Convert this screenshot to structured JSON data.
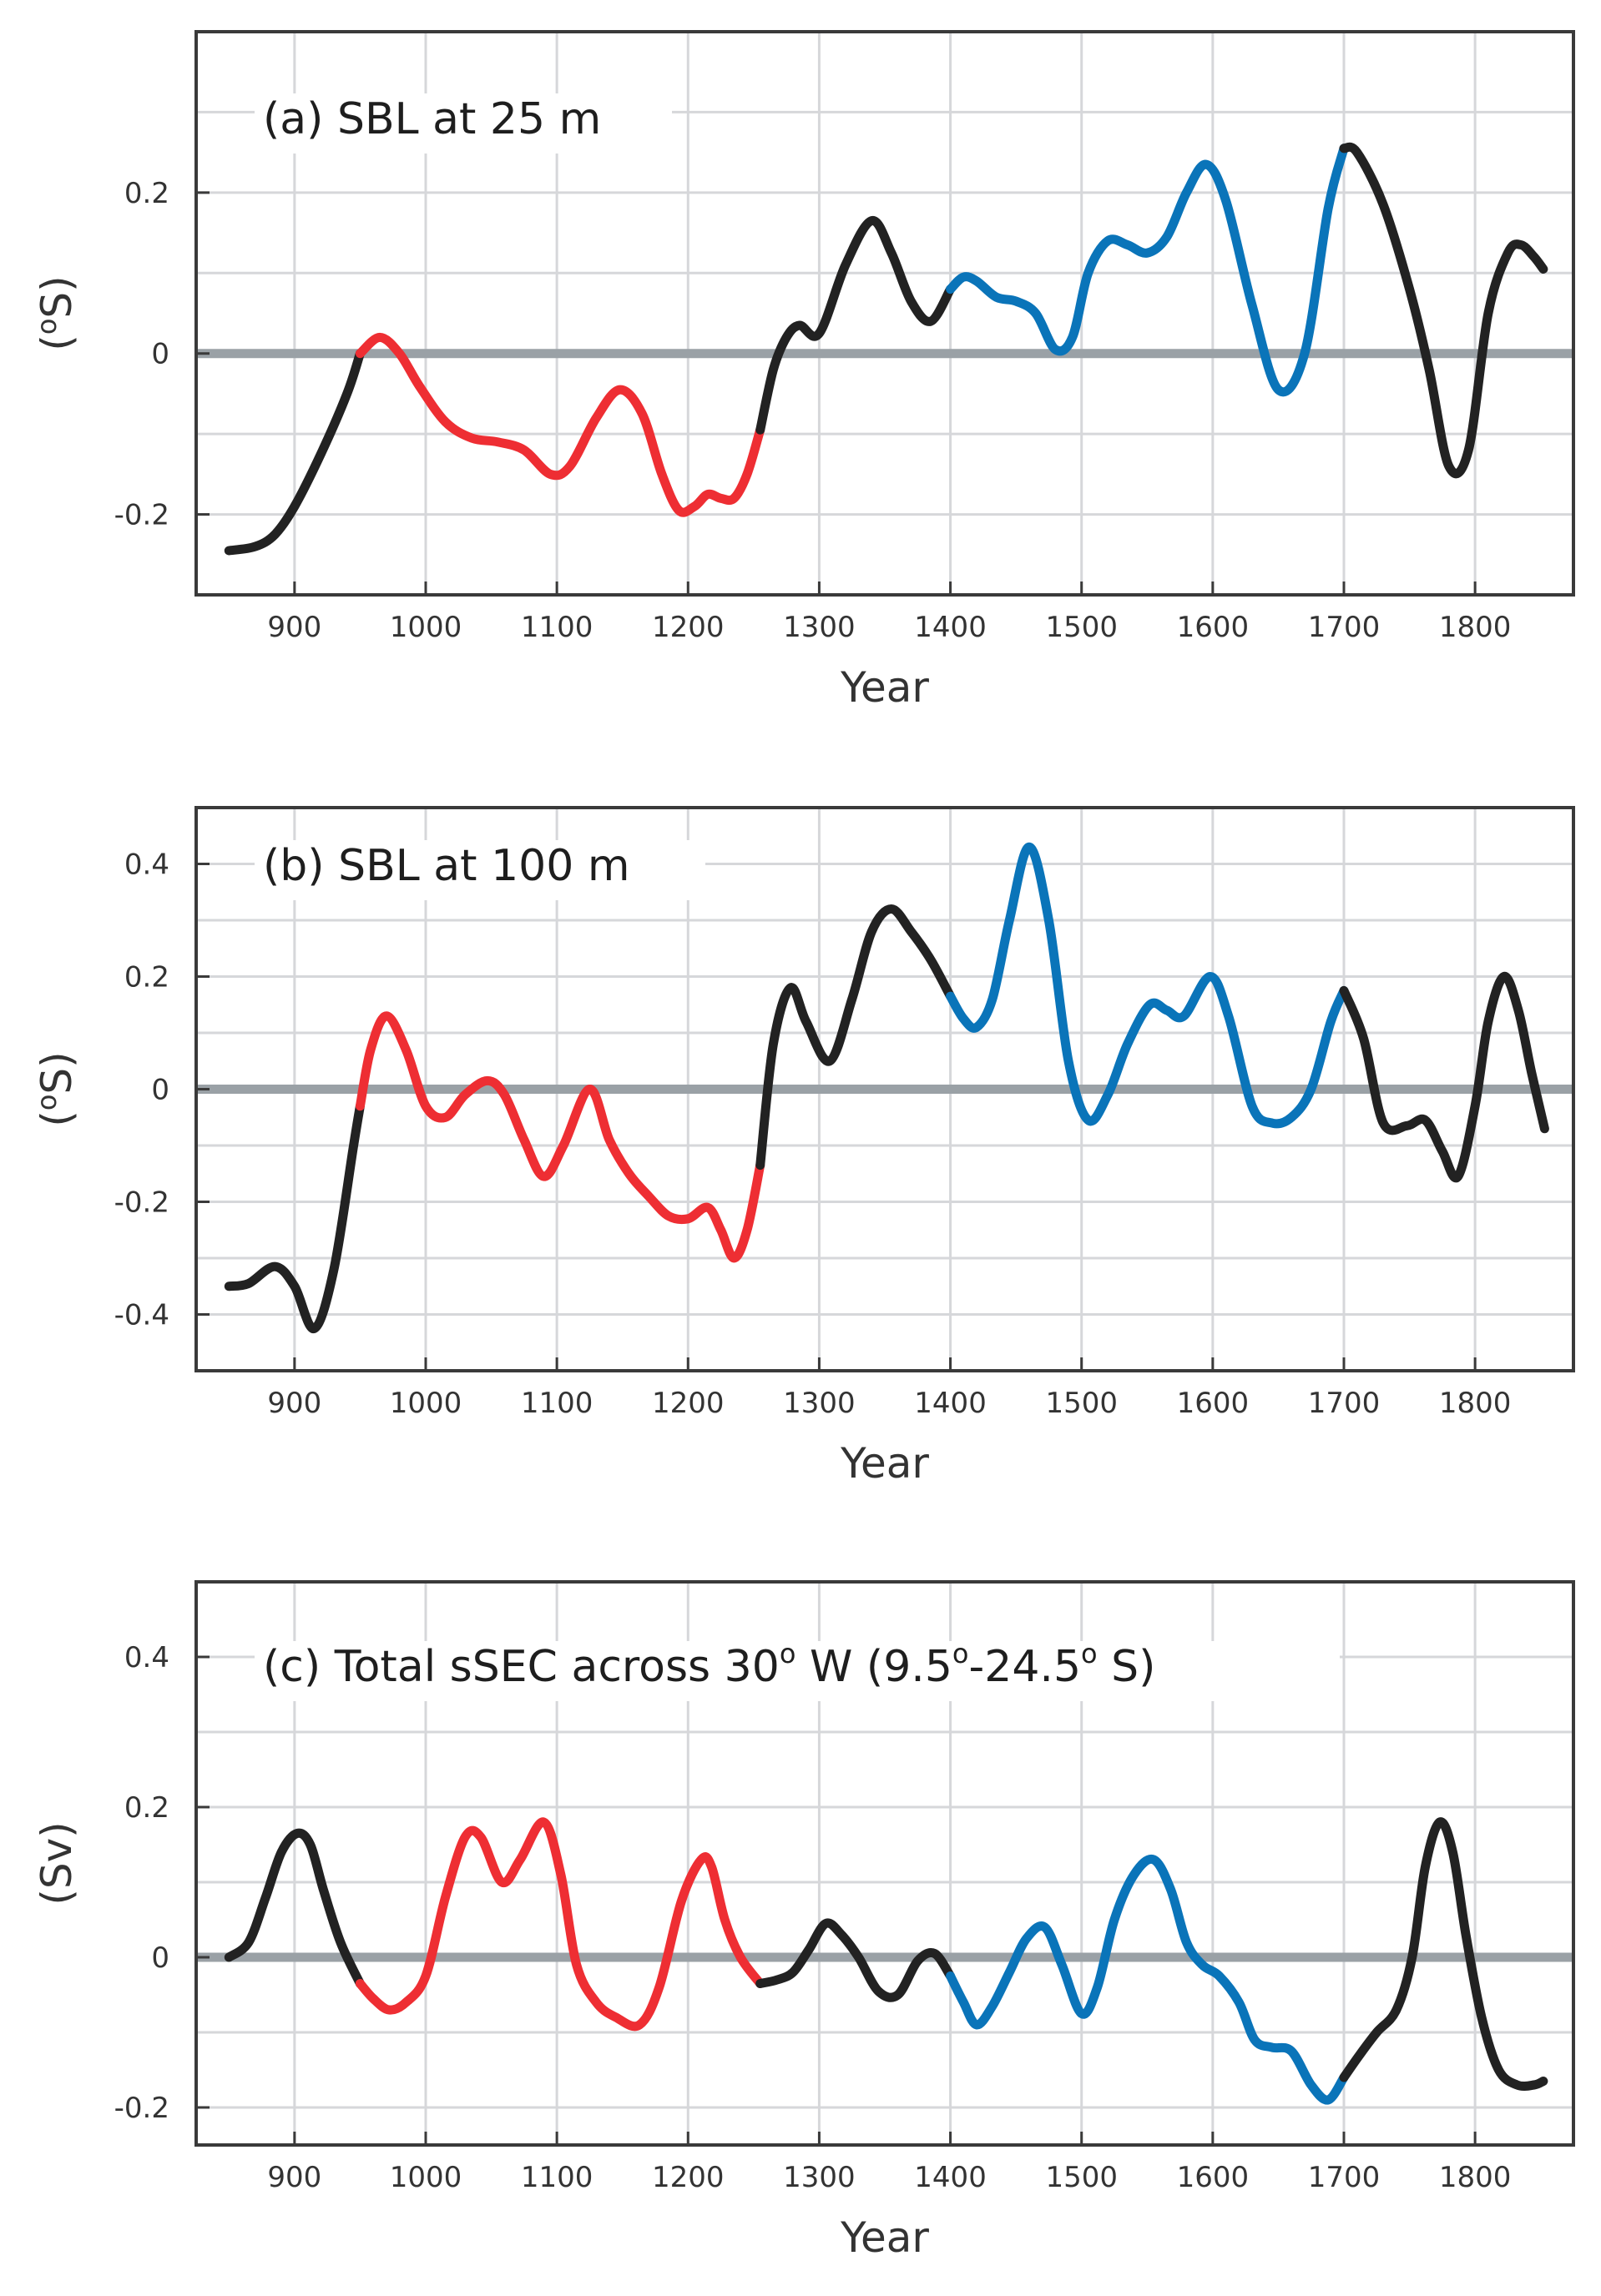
{
  "colors": {
    "warm": "#ee2e33",
    "cold": "#0a74b9",
    "neutral": "#222222",
    "zero_line": "#9aa1a6",
    "grid": "#d6d7da",
    "frame": "#3a3a3a"
  },
  "chart_data": [
    {
      "type": "line",
      "title": "(a) SBL at 25 m",
      "xlabel": "Year",
      "ylabel": "(°S)",
      "ylabel_parts": [
        "(",
        "o",
        "S)"
      ],
      "xlim": [
        825,
        1875
      ],
      "ylim": [
        -0.3,
        0.4
      ],
      "xticks": [
        900,
        1000,
        1100,
        1200,
        1300,
        1400,
        1500,
        1600,
        1700,
        1800
      ],
      "xtick_labels": [
        "900",
        "1000",
        "1100",
        "1200",
        "1300",
        "1400",
        "1500",
        "1600",
        "1700",
        "1800"
      ],
      "yticks": [
        -0.2,
        0,
        0.2
      ],
      "ytick_labels": [
        "-0.2",
        "0",
        "0.2"
      ],
      "grid": true,
      "zero_line": true,
      "series": [
        {
          "name": "neutral",
          "color_key": "neutral",
          "x": [
            850,
            870,
            885,
            900,
            920,
            940,
            950
          ],
          "y": [
            -0.245,
            -0.24,
            -0.225,
            -0.19,
            -0.125,
            -0.05,
            0.0
          ]
        },
        {
          "name": "warm",
          "color_key": "warm",
          "x": [
            950,
            965,
            980,
            995,
            1015,
            1035,
            1055,
            1075,
            1095,
            1110,
            1130,
            1148,
            1165,
            1180,
            1193,
            1205,
            1215,
            1225,
            1235,
            1245,
            1255
          ],
          "y": [
            0.0,
            0.02,
            0.0,
            -0.04,
            -0.085,
            -0.105,
            -0.11,
            -0.12,
            -0.15,
            -0.14,
            -0.08,
            -0.045,
            -0.075,
            -0.15,
            -0.195,
            -0.19,
            -0.175,
            -0.18,
            -0.18,
            -0.15,
            -0.095
          ]
        },
        {
          "name": "neutral",
          "color_key": "neutral",
          "x": [
            1255,
            1265,
            1275,
            1285,
            1300,
            1320,
            1340,
            1355,
            1370,
            1385,
            1400
          ],
          "y": [
            -0.095,
            -0.02,
            0.02,
            0.035,
            0.025,
            0.11,
            0.165,
            0.125,
            0.065,
            0.04,
            0.08
          ]
        },
        {
          "name": "cold",
          "color_key": "cold",
          "x": [
            1400,
            1410,
            1420,
            1435,
            1450,
            1465,
            1480,
            1493,
            1505,
            1520,
            1535,
            1550,
            1565,
            1580,
            1595,
            1610,
            1630,
            1650,
            1670,
            1688,
            1700
          ],
          "y": [
            0.08,
            0.095,
            0.09,
            0.07,
            0.065,
            0.05,
            0.005,
            0.02,
            0.1,
            0.14,
            0.135,
            0.125,
            0.145,
            0.2,
            0.235,
            0.19,
            0.06,
            -0.045,
            0.0,
            0.18,
            0.255
          ]
        },
        {
          "name": "neutral",
          "color_key": "neutral",
          "x": [
            1700,
            1710,
            1730,
            1750,
            1765,
            1780,
            1795,
            1810,
            1825,
            1835,
            1845,
            1852
          ],
          "y": [
            0.255,
            0.25,
            0.185,
            0.08,
            -0.02,
            -0.14,
            -0.12,
            0.05,
            0.125,
            0.135,
            0.12,
            0.105
          ]
        }
      ]
    },
    {
      "type": "line",
      "title": "(b) SBL at 100 m",
      "xlabel": "Year",
      "ylabel": "(°S)",
      "ylabel_parts": [
        "(",
        "o",
        "S)"
      ],
      "xlim": [
        825,
        1875
      ],
      "ylim": [
        -0.5,
        0.5
      ],
      "xticks": [
        900,
        1000,
        1100,
        1200,
        1300,
        1400,
        1500,
        1600,
        1700,
        1800
      ],
      "xtick_labels": [
        "900",
        "1000",
        "1100",
        "1200",
        "1300",
        "1400",
        "1500",
        "1600",
        "1700",
        "1800"
      ],
      "yticks": [
        -0.4,
        -0.2,
        0,
        0.2,
        0.4
      ],
      "ytick_labels": [
        "-0.4",
        "-0.2",
        "0",
        "0.2",
        "0.4"
      ],
      "grid": true,
      "zero_line": true,
      "series": [
        {
          "name": "neutral",
          "color_key": "neutral",
          "x": [
            850,
            865,
            885,
            900,
            915,
            930,
            945,
            950
          ],
          "y": [
            -0.35,
            -0.345,
            -0.315,
            -0.35,
            -0.425,
            -0.32,
            -0.1,
            -0.03
          ]
        },
        {
          "name": "warm",
          "color_key": "warm",
          "x": [
            950,
            958,
            970,
            985,
            1000,
            1015,
            1030,
            1047,
            1060,
            1075,
            1090,
            1105,
            1125,
            1140,
            1155,
            1170,
            1185,
            1200,
            1215,
            1225,
            1235,
            1245,
            1255
          ],
          "y": [
            -0.03,
            0.07,
            0.13,
            0.07,
            -0.03,
            -0.05,
            -0.01,
            0.015,
            -0.01,
            -0.09,
            -0.155,
            -0.1,
            0.0,
            -0.09,
            -0.15,
            -0.19,
            -0.225,
            -0.23,
            -0.21,
            -0.25,
            -0.3,
            -0.25,
            -0.135
          ]
        },
        {
          "name": "neutral",
          "color_key": "neutral",
          "x": [
            1255,
            1265,
            1278,
            1290,
            1308,
            1325,
            1340,
            1355,
            1370,
            1385,
            1400
          ],
          "y": [
            -0.135,
            0.08,
            0.18,
            0.12,
            0.05,
            0.16,
            0.28,
            0.32,
            0.28,
            0.23,
            0.165
          ]
        },
        {
          "name": "cold",
          "color_key": "cold",
          "x": [
            1400,
            1410,
            1420,
            1432,
            1445,
            1460,
            1475,
            1490,
            1505,
            1520,
            1535,
            1552,
            1565,
            1578,
            1598,
            1612,
            1630,
            1645,
            1660,
            1675,
            1690,
            1700
          ],
          "y": [
            0.165,
            0.125,
            0.11,
            0.16,
            0.3,
            0.43,
            0.3,
            0.05,
            -0.055,
            -0.01,
            0.08,
            0.15,
            0.14,
            0.13,
            0.2,
            0.13,
            -0.03,
            -0.06,
            -0.05,
            0.0,
            0.12,
            0.175
          ]
        },
        {
          "name": "neutral",
          "color_key": "neutral",
          "x": [
            1700,
            1715,
            1730,
            1748,
            1762,
            1775,
            1787,
            1800,
            1810,
            1822,
            1833,
            1843,
            1853
          ],
          "y": [
            0.175,
            0.09,
            -0.06,
            -0.065,
            -0.055,
            -0.11,
            -0.155,
            -0.03,
            0.12,
            0.2,
            0.14,
            0.03,
            -0.07
          ]
        }
      ]
    },
    {
      "type": "line",
      "title": "(c) Total sSEC across 30° W (9.5°-24.5° S)",
      "title_parts": [
        "(c) Total sSEC across 30",
        "o",
        " W (9.5",
        "o",
        "-24.5",
        "o",
        " S)"
      ],
      "xlabel": "Year",
      "ylabel": "(Sv)",
      "xlim": [
        825,
        1875
      ],
      "ylim": [
        -0.25,
        0.5
      ],
      "xticks": [
        900,
        1000,
        1100,
        1200,
        1300,
        1400,
        1500,
        1600,
        1700,
        1800
      ],
      "xtick_labels": [
        "900",
        "1000",
        "1100",
        "1200",
        "1300",
        "1400",
        "1500",
        "1600",
        "1700",
        "1800"
      ],
      "yticks": [
        -0.2,
        0,
        0.2,
        0.4
      ],
      "ytick_labels": [
        "-0.2",
        "0",
        "0.2",
        "0.4"
      ],
      "grid": true,
      "zero_line": true,
      "series": [
        {
          "name": "neutral",
          "color_key": "neutral",
          "x": [
            850,
            865,
            878,
            890,
            902,
            912,
            922,
            935,
            950
          ],
          "y": [
            0.0,
            0.02,
            0.08,
            0.14,
            0.165,
            0.15,
            0.09,
            0.02,
            -0.035
          ]
        },
        {
          "name": "warm",
          "color_key": "warm",
          "x": [
            950,
            960,
            972,
            985,
            1000,
            1015,
            1030,
            1042,
            1058,
            1072,
            1090,
            1103,
            1115,
            1130,
            1145,
            1163,
            1178,
            1195,
            1210,
            1218,
            1228,
            1240,
            1255
          ],
          "y": [
            -0.035,
            -0.055,
            -0.07,
            -0.06,
            -0.025,
            0.08,
            0.16,
            0.16,
            0.1,
            0.13,
            0.18,
            0.11,
            -0.01,
            -0.06,
            -0.08,
            -0.09,
            -0.04,
            0.075,
            0.13,
            0.12,
            0.05,
            0.0,
            -0.035
          ]
        },
        {
          "name": "neutral",
          "color_key": "neutral",
          "x": [
            1255,
            1268,
            1280,
            1292,
            1305,
            1317,
            1330,
            1345,
            1360,
            1375,
            1388,
            1400
          ],
          "y": [
            -0.035,
            -0.03,
            -0.02,
            0.01,
            0.045,
            0.03,
            0.0,
            -0.045,
            -0.05,
            -0.005,
            0.005,
            -0.025
          ]
        },
        {
          "name": "cold",
          "color_key": "cold",
          "x": [
            1400,
            1410,
            1420,
            1432,
            1445,
            1458,
            1472,
            1485,
            1500,
            1512,
            1525,
            1540,
            1555,
            1568,
            1580,
            1592,
            1605,
            1620,
            1632,
            1645,
            1660,
            1675,
            1688,
            1700
          ],
          "y": [
            -0.025,
            -0.06,
            -0.09,
            -0.065,
            -0.02,
            0.025,
            0.04,
            -0.01,
            -0.075,
            -0.04,
            0.05,
            0.11,
            0.13,
            0.09,
            0.02,
            -0.01,
            -0.025,
            -0.06,
            -0.11,
            -0.12,
            -0.125,
            -0.17,
            -0.19,
            -0.16
          ]
        },
        {
          "name": "neutral",
          "color_key": "neutral",
          "x": [
            1700,
            1712,
            1725,
            1740,
            1752,
            1762,
            1773,
            1783,
            1793,
            1805,
            1818,
            1832,
            1845,
            1852
          ],
          "y": [
            -0.16,
            -0.13,
            -0.1,
            -0.07,
            0.0,
            0.12,
            0.18,
            0.14,
            0.03,
            -0.08,
            -0.15,
            -0.17,
            -0.17,
            -0.165
          ]
        }
      ]
    }
  ]
}
